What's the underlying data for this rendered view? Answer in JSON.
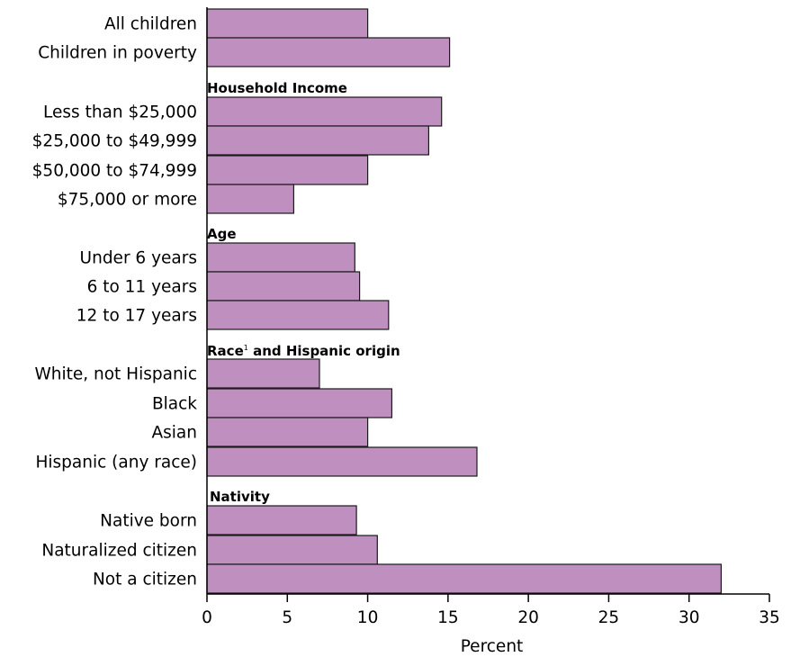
{
  "chart_data": {
    "type": "bar",
    "orientation": "horizontal",
    "xlabel": "Percent",
    "xlim": [
      0,
      35
    ],
    "xticks": [
      "0",
      "5",
      "10",
      "15",
      "20",
      "25",
      "30",
      "35"
    ],
    "bar_color": "#bf8fbf",
    "bar_stroke": "#1a1a1a",
    "groups": [
      {
        "title": "",
        "categories": [
          "All children",
          "Children in poverty"
        ],
        "values": [
          10.0,
          15.1
        ]
      },
      {
        "title": "Household Income",
        "categories": [
          "Less than $25,000",
          "$25,000 to $49,999",
          "$50,000 to $74,999",
          "$75,000 or more"
        ],
        "values": [
          14.6,
          13.8,
          10.0,
          5.4
        ]
      },
      {
        "title": "Age",
        "categories": [
          "Under 6 years",
          "6 to 11 years",
          "12 to 17 years"
        ],
        "values": [
          9.2,
          9.5,
          11.3
        ]
      },
      {
        "title": "Race",
        "title_sup": "1",
        "title_rest": " and Hispanic origin",
        "categories": [
          "White, not Hispanic",
          "Black",
          "Asian",
          "Hispanic (any race)"
        ],
        "values": [
          7.0,
          11.5,
          10.0,
          16.8
        ]
      },
      {
        "title": "Nativity",
        "categories": [
          "Native born",
          "Naturalized citizen",
          "Not a citizen"
        ],
        "values": [
          9.3,
          10.6,
          32.0
        ]
      }
    ]
  }
}
